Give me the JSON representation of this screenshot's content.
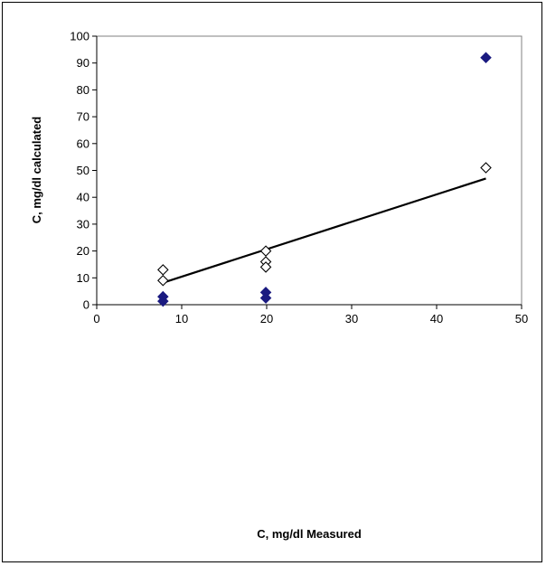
{
  "chart_data": {
    "type": "scatter",
    "title": "",
    "xlabel": "C, mg/dl Measured",
    "ylabel": "C, mg/dl calculated",
    "xlim": [
      0,
      50
    ],
    "ylim": [
      0,
      100
    ],
    "xticks": [
      0,
      10,
      20,
      30,
      40,
      50
    ],
    "yticks": [
      0,
      10,
      20,
      30,
      40,
      50,
      60,
      70,
      80,
      90,
      100
    ],
    "grid": false,
    "legend": "none",
    "series": [
      {
        "marker": "diamond-open",
        "color": "#000000",
        "points": [
          {
            "x": 7.8,
            "y": 13
          },
          {
            "x": 7.8,
            "y": 9
          },
          {
            "x": 19.9,
            "y": 20
          },
          {
            "x": 19.9,
            "y": 16
          },
          {
            "x": 19.9,
            "y": 14
          },
          {
            "x": 45.8,
            "y": 51
          }
        ]
      },
      {
        "marker": "diamond-filled",
        "color": "#1a1a80",
        "points": [
          {
            "x": 7.8,
            "y": 3
          },
          {
            "x": 7.8,
            "y": 1.3
          },
          {
            "x": 19.9,
            "y": 4.6
          },
          {
            "x": 19.9,
            "y": 2.5
          },
          {
            "x": 45.8,
            "y": 92
          }
        ]
      }
    ],
    "trendline": {
      "color": "#000000",
      "points": [
        {
          "x": 7.8,
          "y": 8.2
        },
        {
          "x": 45.8,
          "y": 47
        }
      ]
    }
  }
}
